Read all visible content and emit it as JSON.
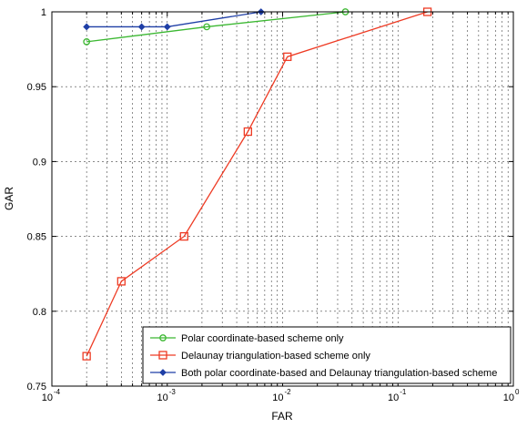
{
  "chart_data": {
    "type": "line",
    "xlabel": "FAR",
    "ylabel": "GAR",
    "x_scale": "log",
    "xlim": [
      0.0001,
      1
    ],
    "ylim": [
      0.75,
      1
    ],
    "grid": true,
    "legend_position": "bottom-right",
    "x_ticks": [
      {
        "value": 0.0001,
        "base": "10",
        "exp": "-4"
      },
      {
        "value": 0.001,
        "base": "10",
        "exp": "-3"
      },
      {
        "value": 0.01,
        "base": "10",
        "exp": "-2"
      },
      {
        "value": 0.1,
        "base": "10",
        "exp": "-1"
      },
      {
        "value": 1,
        "base": "10",
        "exp": "0"
      }
    ],
    "y_ticks": [
      {
        "value": 0.75,
        "label": "0.75"
      },
      {
        "value": 0.8,
        "label": "0.8"
      },
      {
        "value": 0.85,
        "label": "0.85"
      },
      {
        "value": 0.9,
        "label": "0.9"
      },
      {
        "value": 0.95,
        "label": "0.95"
      },
      {
        "value": 1,
        "label": "1"
      }
    ],
    "series": [
      {
        "name": "Polar coordinate-based scheme only",
        "color": "#3cb832",
        "marker": "circle",
        "x": [
          0.0002,
          0.0022,
          0.035
        ],
        "y": [
          0.98,
          0.99,
          1.0
        ]
      },
      {
        "name": "Delaunay triangulation-based scheme only",
        "color": "#ee3b24",
        "marker": "square",
        "x": [
          0.0002,
          0.0004,
          0.0014,
          0.005,
          0.011,
          0.18
        ],
        "y": [
          0.77,
          0.82,
          0.85,
          0.92,
          0.97,
          1.0
        ]
      },
      {
        "name": "Both polar coordinate-based and Delaunay triangulation-based scheme",
        "color": "#1f3fa6",
        "marker": "diamond",
        "x": [
          0.0002,
          0.0006,
          0.001,
          0.0065
        ],
        "y": [
          0.99,
          0.99,
          0.99,
          1.0
        ]
      }
    ]
  }
}
